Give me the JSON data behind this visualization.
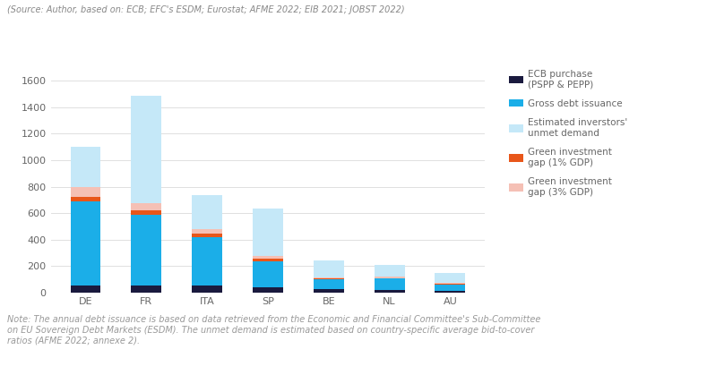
{
  "categories": [
    "DE",
    "FR",
    "ITA",
    "SP",
    "BE",
    "NL",
    "AU"
  ],
  "ecb_purchase": [
    50,
    50,
    50,
    40,
    25,
    20,
    15
  ],
  "gross_debt": [
    640,
    540,
    370,
    195,
    75,
    85,
    45
  ],
  "green_gap_1pct": [
    30,
    30,
    25,
    20,
    5,
    5,
    5
  ],
  "green_gap_3pct": [
    75,
    55,
    35,
    20,
    10,
    10,
    10
  ],
  "unmet_demand": [
    305,
    810,
    255,
    360,
    130,
    90,
    70
  ],
  "colors": {
    "ecb_purchase": "#1a1a3e",
    "gross_debt": "#1baee8",
    "green_gap_1pct": "#e8561a",
    "green_gap_3pct": "#f5c0b5",
    "unmet_demand": "#c5e8f8"
  },
  "legend_labels": [
    "ECB purchase\n(PSPP & PEPP)",
    "Gross debt issuance",
    "Estimated inverstors'\nunmet demand",
    "Green investment\ngap (1% GDP)",
    "Green investment\ngap (3% GDP)"
  ],
  "ylim": [
    0,
    1700
  ],
  "yticks": [
    0,
    200,
    400,
    600,
    800,
    1000,
    1200,
    1400,
    1600
  ],
  "source_text": "(Source: Author, based on: ECB; EFC's ESDM; Eurostat; AFME 2022; EIB 2021; JOBST 2022)",
  "note_text": "Note: The annual debt issuance is based on data retrieved from the Economic and Financial Committee's Sub-Committee\non EU Sovereign Debt Markets (ESDM). The unmet demand is estimated based on country-specific average bid-to-cover\nratios (AFME 2022; annexe 2).",
  "bar_width": 0.5,
  "background_color": "#ffffff",
  "grid_color": "#e0e0e0",
  "text_color": "#666666",
  "source_color": "#888888",
  "note_color": "#999999"
}
